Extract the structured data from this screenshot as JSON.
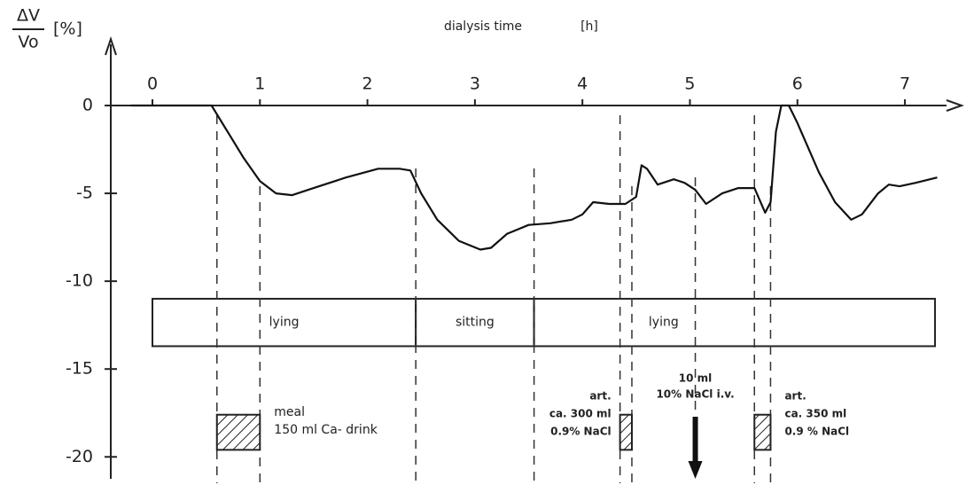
{
  "chart_data": {
    "type": "line",
    "y_label": {
      "numerator": "ΔV",
      "denominator": "Vo",
      "unit": "[%]"
    },
    "x_label": "dialysis time",
    "x_unit": "[h]",
    "xlim": [
      -0.3,
      7.4
    ],
    "ylim": [
      -21.5,
      0
    ],
    "xticks": [
      0,
      1,
      2,
      3,
      4,
      5,
      6,
      7
    ],
    "yticks": [
      0,
      -5,
      -10,
      -15,
      -20
    ],
    "series": [
      {
        "color": "#111111",
        "x": [
          -0.2,
          0,
          0.55,
          0.7,
          0.85,
          1.0,
          1.15,
          1.3,
          1.5,
          1.8,
          2.1,
          2.3,
          2.4,
          2.5,
          2.65,
          2.85,
          3.05,
          3.15,
          3.3,
          3.5,
          3.7,
          3.9,
          4.0,
          4.1,
          4.25,
          4.4,
          4.5,
          4.55,
          4.6,
          4.7,
          4.85,
          4.95,
          5.05,
          5.15,
          5.3,
          5.45,
          5.6,
          5.7,
          5.75,
          5.8,
          5.85,
          5.92,
          6.0,
          6.2,
          6.35,
          6.5,
          6.6,
          6.75,
          6.85,
          6.95,
          7.1,
          7.3
        ],
        "values": [
          0,
          0,
          0,
          -1.5,
          -3,
          -4.3,
          -5,
          -5.1,
          -4.7,
          -4.1,
          -3.6,
          -3.6,
          -3.7,
          -5,
          -6.5,
          -7.7,
          -8.2,
          -8.1,
          -7.3,
          -6.8,
          -6.7,
          -6.5,
          -6.2,
          -5.5,
          -5.6,
          -5.6,
          -5.2,
          -3.4,
          -3.6,
          -4.5,
          -4.2,
          -4.4,
          -4.8,
          -5.6,
          -5.0,
          -4.7,
          -4.7,
          -6.1,
          -5.5,
          -1.5,
          0,
          0,
          -1.0,
          -3.8,
          -5.5,
          -6.5,
          -6.2,
          -5,
          -4.5,
          -4.6,
          -4.4,
          -4.1
        ]
      }
    ],
    "postures": [
      {
        "label": "lying",
        "start": 0,
        "end": 2.45
      },
      {
        "label": "sitting",
        "start": 2.45,
        "end": 3.55
      },
      {
        "label": "lying",
        "start": 3.55,
        "end": 7.28
      }
    ],
    "infusions": [
      {
        "lines": [
          "meal",
          "150 ml Ca- drink"
        ],
        "start": 0.6,
        "end": 1.0
      },
      {
        "lines": [
          "art.",
          "ca. 300 ml",
          "0.9% NaCl"
        ],
        "start": 4.35,
        "end": 4.46
      },
      {
        "lines": [
          "art.",
          "ca. 350 ml",
          "0.9 % NaCl"
        ],
        "start": 5.6,
        "end": 5.75
      }
    ],
    "bolus": {
      "lines": [
        "10 ml",
        "10% NaCl  i.v."
      ],
      "time": 5.05
    }
  }
}
